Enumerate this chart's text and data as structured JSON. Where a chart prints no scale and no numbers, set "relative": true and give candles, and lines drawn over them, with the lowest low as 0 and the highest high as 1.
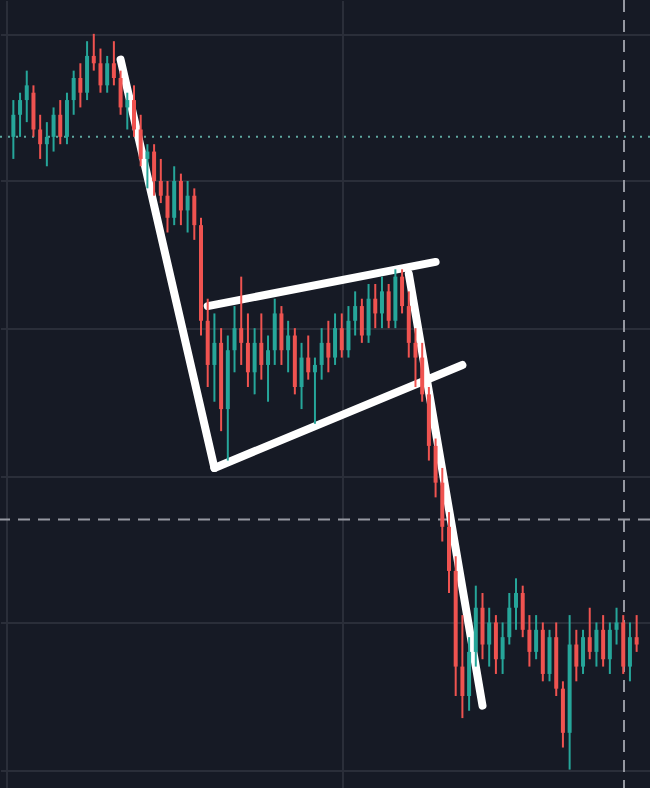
{
  "chart_data": {
    "type": "candlestick",
    "relative": true,
    "tick_labels": false,
    "grid": true,
    "categories": [
      null,
      null,
      null,
      null,
      null,
      null,
      null,
      null,
      null,
      null,
      null,
      null,
      null,
      null,
      null,
      null,
      null,
      null,
      null,
      null,
      null,
      null,
      null,
      null,
      null,
      null,
      null,
      null,
      null,
      null,
      null,
      null,
      null,
      null,
      null,
      null,
      null,
      null,
      null,
      null,
      null,
      null,
      null,
      null,
      null,
      null,
      null,
      null,
      null,
      null,
      null,
      null,
      null,
      null,
      null,
      null,
      null,
      null,
      null,
      null,
      null,
      null,
      null,
      null,
      null,
      null,
      null,
      null,
      null,
      null,
      null,
      null,
      null,
      null,
      null,
      null,
      null,
      null,
      null,
      null,
      null,
      null,
      null,
      null,
      null,
      null,
      null,
      null,
      null,
      null,
      null,
      null,
      null,
      null
    ],
    "ohlc": [
      [
        0.86,
        0.91,
        0.83,
        0.89
      ],
      [
        0.89,
        0.92,
        0.86,
        0.91
      ],
      [
        0.91,
        0.95,
        0.88,
        0.93
      ],
      [
        0.92,
        0.93,
        0.86,
        0.87
      ],
      [
        0.87,
        0.89,
        0.83,
        0.85
      ],
      [
        0.85,
        0.88,
        0.82,
        0.86
      ],
      [
        0.86,
        0.9,
        0.84,
        0.89
      ],
      [
        0.89,
        0.91,
        0.85,
        0.86
      ],
      [
        0.86,
        0.92,
        0.85,
        0.91
      ],
      [
        0.91,
        0.95,
        0.89,
        0.94
      ],
      [
        0.94,
        0.96,
        0.9,
        0.92
      ],
      [
        0.92,
        0.99,
        0.91,
        0.97
      ],
      [
        0.97,
        1.0,
        0.95,
        0.96
      ],
      [
        0.96,
        0.98,
        0.92,
        0.93
      ],
      [
        0.93,
        0.97,
        0.92,
        0.96
      ],
      [
        0.96,
        0.99,
        0.93,
        0.94
      ],
      [
        0.94,
        0.95,
        0.89,
        0.9
      ],
      [
        0.9,
        0.92,
        0.87,
        0.91
      ],
      [
        0.91,
        0.93,
        0.86,
        0.87
      ],
      [
        0.87,
        0.89,
        0.82,
        0.83
      ],
      [
        0.83,
        0.85,
        0.79,
        0.84
      ],
      [
        0.84,
        0.85,
        0.78,
        0.8
      ],
      [
        0.8,
        0.83,
        0.77,
        0.78
      ],
      [
        0.78,
        0.8,
        0.73,
        0.75
      ],
      [
        0.75,
        0.82,
        0.74,
        0.8
      ],
      [
        0.8,
        0.81,
        0.74,
        0.76
      ],
      [
        0.76,
        0.8,
        0.73,
        0.78
      ],
      [
        0.78,
        0.79,
        0.72,
        0.74
      ],
      [
        0.74,
        0.75,
        0.59,
        0.61
      ],
      [
        0.61,
        0.64,
        0.52,
        0.55
      ],
      [
        0.55,
        0.62,
        0.5,
        0.58
      ],
      [
        0.58,
        0.6,
        0.46,
        0.49
      ],
      [
        0.49,
        0.59,
        0.42,
        0.57
      ],
      [
        0.57,
        0.63,
        0.54,
        0.6
      ],
      [
        0.6,
        0.67,
        0.55,
        0.58
      ],
      [
        0.58,
        0.62,
        0.52,
        0.54
      ],
      [
        0.54,
        0.6,
        0.51,
        0.58
      ],
      [
        0.58,
        0.62,
        0.53,
        0.55
      ],
      [
        0.55,
        0.59,
        0.5,
        0.57
      ],
      [
        0.57,
        0.64,
        0.55,
        0.62
      ],
      [
        0.62,
        0.63,
        0.55,
        0.57
      ],
      [
        0.57,
        0.61,
        0.54,
        0.59
      ],
      [
        0.59,
        0.6,
        0.51,
        0.52
      ],
      [
        0.52,
        0.58,
        0.49,
        0.56
      ],
      [
        0.56,
        0.59,
        0.53,
        0.54
      ],
      [
        0.54,
        0.56,
        0.47,
        0.55
      ],
      [
        0.55,
        0.6,
        0.53,
        0.58
      ],
      [
        0.58,
        0.61,
        0.54,
        0.56
      ],
      [
        0.56,
        0.62,
        0.55,
        0.6
      ],
      [
        0.6,
        0.62,
        0.56,
        0.57
      ],
      [
        0.57,
        0.63,
        0.56,
        0.61
      ],
      [
        0.61,
        0.65,
        0.59,
        0.63
      ],
      [
        0.63,
        0.64,
        0.58,
        0.59
      ],
      [
        0.59,
        0.66,
        0.58,
        0.64
      ],
      [
        0.64,
        0.66,
        0.6,
        0.62
      ],
      [
        0.62,
        0.67,
        0.6,
        0.65
      ],
      [
        0.65,
        0.66,
        0.6,
        0.61
      ],
      [
        0.61,
        0.68,
        0.6,
        0.67
      ],
      [
        0.67,
        0.68,
        0.62,
        0.63
      ],
      [
        0.63,
        0.65,
        0.56,
        0.58
      ],
      [
        0.58,
        0.6,
        0.52,
        0.56
      ],
      [
        0.56,
        0.58,
        0.5,
        0.51
      ],
      [
        0.51,
        0.52,
        0.42,
        0.44
      ],
      [
        0.44,
        0.45,
        0.37,
        0.39
      ],
      [
        0.39,
        0.41,
        0.31,
        0.33
      ],
      [
        0.33,
        0.35,
        0.24,
        0.27
      ],
      [
        0.27,
        0.29,
        0.1,
        0.14
      ],
      [
        0.14,
        0.21,
        0.07,
        0.1
      ],
      [
        0.1,
        0.18,
        0.08,
        0.16
      ],
      [
        0.16,
        0.25,
        0.14,
        0.22
      ],
      [
        0.22,
        0.24,
        0.15,
        0.17
      ],
      [
        0.17,
        0.22,
        0.14,
        0.2
      ],
      [
        0.2,
        0.21,
        0.13,
        0.15
      ],
      [
        0.15,
        0.2,
        0.13,
        0.18
      ],
      [
        0.18,
        0.24,
        0.17,
        0.22
      ],
      [
        0.22,
        0.26,
        0.19,
        0.24
      ],
      [
        0.24,
        0.25,
        0.18,
        0.19
      ],
      [
        0.19,
        0.21,
        0.14,
        0.16
      ],
      [
        0.16,
        0.21,
        0.15,
        0.19
      ],
      [
        0.19,
        0.2,
        0.12,
        0.13
      ],
      [
        0.13,
        0.19,
        0.12,
        0.18
      ],
      [
        0.18,
        0.2,
        0.1,
        0.11
      ],
      [
        0.11,
        0.12,
        0.03,
        0.05
      ],
      [
        0.05,
        0.21,
        0.0,
        0.17
      ],
      [
        0.17,
        0.19,
        0.12,
        0.14
      ],
      [
        0.14,
        0.19,
        0.13,
        0.18
      ],
      [
        0.18,
        0.22,
        0.15,
        0.16
      ],
      [
        0.16,
        0.2,
        0.14,
        0.19
      ],
      [
        0.19,
        0.21,
        0.14,
        0.15
      ],
      [
        0.15,
        0.2,
        0.13,
        0.19
      ],
      [
        0.19,
        0.22,
        0.17,
        0.2
      ],
      [
        0.2,
        0.21,
        0.13,
        0.14
      ],
      [
        0.14,
        0.2,
        0.12,
        0.18
      ],
      [
        0.18,
        0.21,
        0.16,
        0.17
      ]
    ],
    "colors": [
      "#26a69a",
      "#26a69a",
      "#26a69a",
      "#ef5350",
      "#ef5350",
      "#26a69a",
      "#26a69a",
      "#ef5350",
      "#26a69a",
      "#26a69a",
      "#ef5350",
      "#26a69a",
      "#ef5350",
      "#ef5350",
      "#26a69a",
      "#ef5350",
      "#ef5350",
      "#26a69a",
      "#ef5350",
      "#ef5350",
      "#26a69a",
      "#ef5350",
      "#ef5350",
      "#ef5350",
      "#26a69a",
      "#ef5350",
      "#26a69a",
      "#ef5350",
      "#ef5350",
      "#ef5350",
      "#26a69a",
      "#ef5350",
      "#26a69a",
      "#26a69a",
      "#ef5350",
      "#ef5350",
      "#26a69a",
      "#ef5350",
      "#26a69a",
      "#26a69a",
      "#ef5350",
      "#26a69a",
      "#ef5350",
      "#26a69a",
      "#ef5350",
      "#26a69a",
      "#26a69a",
      "#ef5350",
      "#26a69a",
      "#ef5350",
      "#26a69a",
      "#26a69a",
      "#ef5350",
      "#26a69a",
      "#ef5350",
      "#26a69a",
      "#ef5350",
      "#26a69a",
      "#ef5350",
      "#ef5350",
      "#ef5350",
      "#ef5350",
      "#ef5350",
      "#ef5350",
      "#ef5350",
      "#ef5350",
      "#ef5350",
      "#ef5350",
      "#26a69a",
      "#26a69a",
      "#ef5350",
      "#26a69a",
      "#ef5350",
      "#26a69a",
      "#26a69a",
      "#26a69a",
      "#ef5350",
      "#ef5350",
      "#26a69a",
      "#ef5350",
      "#26a69a",
      "#ef5350",
      "#ef5350",
      "#26a69a",
      "#ef5350",
      "#26a69a",
      "#ef5350",
      "#26a69a",
      "#ef5350",
      "#26a69a",
      "#26a69a",
      "#ef5350",
      "#26a69a",
      "#ef5350"
    ],
    "series": [
      {
        "type": "line",
        "color": "#ffffff",
        "values": [
          null,
          null,
          null,
          null,
          null,
          null,
          null,
          null,
          null,
          null,
          null,
          null,
          null,
          null,
          null,
          null,
          0.965,
          null,
          null,
          null,
          null,
          null,
          null,
          null,
          null,
          null,
          null,
          null,
          null,
          null,
          0.41,
          null,
          null,
          null,
          null,
          null,
          null,
          null,
          null,
          null,
          null,
          null,
          null,
          null,
          null,
          null,
          null,
          null,
          null,
          null,
          null,
          null,
          null,
          null,
          null,
          null,
          null,
          null,
          null,
          null,
          null,
          null,
          null,
          null,
          null,
          null,
          null,
          null,
          null,
          null,
          null,
          null,
          null,
          null,
          null,
          null,
          null,
          null,
          null,
          null,
          null,
          null,
          null,
          null,
          null,
          null,
          null,
          null,
          null,
          null,
          null,
          null,
          null,
          null
        ]
      },
      {
        "type": "line",
        "color": "#ffffff",
        "values": [
          null,
          null,
          null,
          null,
          null,
          null,
          null,
          null,
          null,
          null,
          null,
          null,
          null,
          null,
          null,
          null,
          null,
          null,
          null,
          null,
          null,
          null,
          null,
          null,
          null,
          null,
          null,
          null,
          null,
          null,
          0.41,
          null,
          null,
          null,
          null,
          null,
          null,
          null,
          null,
          null,
          null,
          null,
          null,
          null,
          null,
          null,
          null,
          null,
          null,
          null,
          null,
          null,
          null,
          null,
          null,
          null,
          null,
          null,
          null,
          null,
          null,
          null,
          null,
          null,
          null,
          null,
          null,
          0.55,
          null,
          null,
          null,
          null,
          null,
          null,
          null,
          null,
          null,
          null,
          null,
          null,
          null,
          null,
          null,
          null,
          null,
          null,
          null,
          null,
          null,
          null,
          null,
          null,
          null,
          null
        ]
      },
      {
        "type": "line",
        "color": "#ffffff",
        "values": [
          null,
          null,
          null,
          null,
          null,
          null,
          null,
          null,
          null,
          null,
          null,
          null,
          null,
          null,
          null,
          null,
          null,
          null,
          null,
          null,
          null,
          null,
          null,
          null,
          null,
          null,
          null,
          null,
          null,
          0.63,
          null,
          null,
          null,
          null,
          null,
          null,
          null,
          null,
          null,
          null,
          null,
          null,
          null,
          null,
          null,
          null,
          null,
          null,
          null,
          null,
          null,
          null,
          null,
          null,
          null,
          null,
          null,
          null,
          null,
          null,
          null,
          null,
          null,
          0.69,
          null,
          null,
          null,
          null,
          null,
          null,
          null,
          null,
          null,
          null,
          null,
          null,
          null,
          null,
          null,
          null,
          null,
          null,
          null,
          null,
          null,
          null,
          null,
          null,
          null,
          null,
          null,
          null,
          null,
          null
        ]
      },
      {
        "type": "line",
        "color": "#ffffff",
        "values": [
          null,
          null,
          null,
          null,
          null,
          null,
          null,
          null,
          null,
          null,
          null,
          null,
          null,
          null,
          null,
          null,
          null,
          null,
          null,
          null,
          null,
          null,
          null,
          null,
          null,
          null,
          null,
          null,
          null,
          null,
          null,
          null,
          null,
          null,
          null,
          null,
          null,
          null,
          null,
          null,
          null,
          null,
          null,
          null,
          null,
          null,
          null,
          null,
          null,
          null,
          null,
          null,
          null,
          null,
          null,
          null,
          null,
          null,
          null,
          0.674,
          null,
          null,
          null,
          null,
          null,
          null,
          null,
          null,
          null,
          null,
          0.087,
          null,
          null,
          null,
          null,
          null,
          null,
          null,
          null,
          null,
          null,
          null,
          null,
          null,
          null,
          null,
          null,
          null,
          null,
          null,
          null,
          null,
          null,
          null
        ]
      }
    ],
    "ref_lines": [
      {
        "axis": "y",
        "value": 0.86,
        "color": "#5fa8a0",
        "line_style": "dotted"
      },
      {
        "axis": "y",
        "value": 0.34,
        "color": "#9598a1",
        "line_style": "dashed"
      }
    ]
  }
}
